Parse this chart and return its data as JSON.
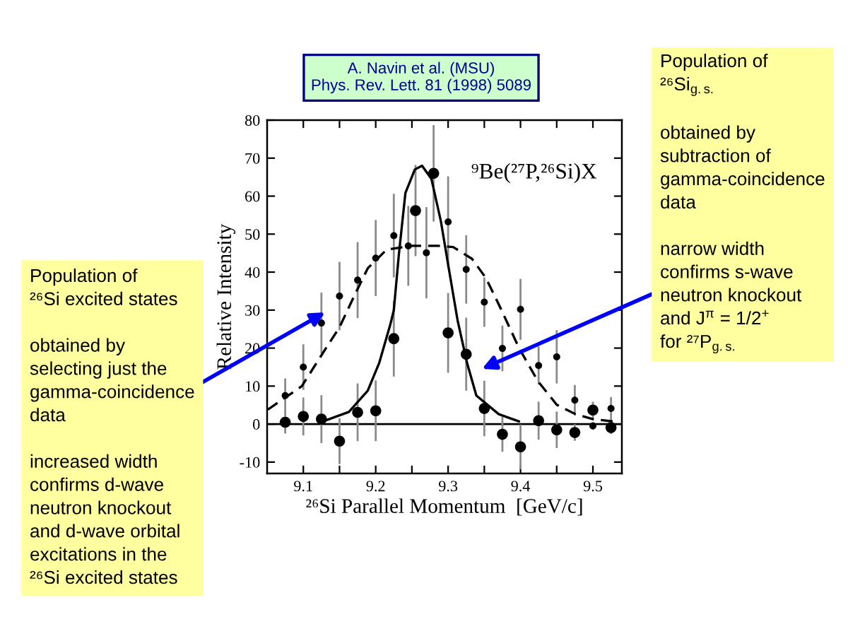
{
  "chart_data": {
    "type": "scatter",
    "annotations": [
      "A. Navin et al. (MSU)\nPhys. Rev. Lett. 81 (1998) 5089",
      "⁹Be(²⁷P,²⁶Si)X",
      "Population of\n²⁶Si excited states\n\nobtained by\nselecting just the\ngamma-coincidence\ndata\n\nincreased width\nconfirms d-wave\nneutron knockout\nand d-wave orbital\nexcitations in the\n²⁶Si excited states",
      "Population of\n²⁶Si$_{g.s.}$\n\nobtained by\nsubtraction of\ngamma-coincidence\ndata\n\nnarrow width\nconfirms s-wave\nneutron knockout\nand J$^{π}$ = 1/2$^{+}$\nfor ²⁷P$_{g.s.}$"
    ],
    "xlabel": "²⁶Si Parallel Momentum  [GeV/c]",
    "ylabel": "Relative Intensity",
    "xlim": [
      9.05,
      9.54
    ],
    "ylim": [
      -13,
      80
    ],
    "xticks": [
      9.1,
      {
        "value": 9.15,
        "label": null
      },
      9.2,
      {
        "value": 9.25,
        "label": null
      },
      9.3,
      {
        "value": 9.35,
        "label": null
      },
      9.4,
      {
        "value": 9.45,
        "label": null
      },
      9.5
    ],
    "yticks": [
      -10,
      0,
      10,
      20,
      30,
      40,
      50,
      60,
      70,
      80
    ],
    "ref_lines": [
      {
        "axis": "y",
        "value": 0,
        "color": "#000000"
      }
    ],
    "series": [
      {
        "marker": "circle",
        "color": "#000000",
        "x": [
          9.075,
          9.1,
          9.125,
          9.15,
          9.175,
          9.2,
          9.225,
          9.245,
          9.27,
          9.3,
          9.325,
          9.35,
          9.375,
          9.4,
          9.425,
          9.45,
          9.475,
          9.5,
          9.525
        ],
        "values": [
          7.5,
          15,
          26.6,
          33.7,
          37.9,
          43.7,
          49.6,
          46.9,
          45.1,
          53.2,
          40.7,
          32.1,
          19.9,
          30.2,
          15.4,
          17.7,
          6.3,
          -0.5,
          4.1
        ],
        "errors": [
          4.5,
          6,
          8,
          9,
          10,
          10,
          11,
          10.5,
          12,
          12,
          9,
          6.5,
          6,
          8,
          5,
          7,
          4,
          1,
          3
        ]
      },
      {
        "marker": "circle",
        "color": "#000000",
        "x": [
          9.075,
          9.1,
          9.125,
          9.15,
          9.175,
          9.2,
          9.225,
          9.255,
          9.28,
          9.3,
          9.325,
          9.35,
          9.375,
          9.4,
          9.425,
          9.45,
          9.475,
          9.5,
          9.525
        ],
        "values": [
          0.5,
          2,
          1.3,
          -4.5,
          3.1,
          3.5,
          22.5,
          56.2,
          66,
          24,
          18.4,
          4.1,
          -2.7,
          -6,
          0.9,
          -1.5,
          -2.2,
          3.7,
          -0.9
        ],
        "errors": [
          3,
          5,
          6.3,
          6,
          7.6,
          8,
          10,
          12,
          12.7,
          10.5,
          9.6,
          7.3,
          4.6,
          5.9,
          5,
          4.8,
          2.2,
          2.2,
          1.7
        ]
      },
      {
        "type": "line",
        "marker": "none",
        "line_style": "solid",
        "color": "#000000",
        "x": [
          9.127,
          9.163,
          9.189,
          9.205,
          9.22,
          9.225,
          9.232,
          9.241,
          9.254,
          9.264,
          9.277,
          9.29,
          9.3,
          9.313,
          9.326,
          9.339,
          9.37,
          9.398
        ],
        "values": [
          0.7,
          3.2,
          8.8,
          16.2,
          26.1,
          30,
          44.7,
          60.8,
          67,
          68,
          64.5,
          53.4,
          42,
          27.4,
          16.2,
          7.5,
          2.6,
          0.7
        ]
      },
      {
        "type": "line",
        "marker": "none",
        "line_style": "dashed",
        "color": "#000000",
        "x": [
          9.051,
          9.098,
          9.131,
          9.15,
          9.17,
          9.189,
          9.215,
          9.248,
          9.287,
          9.307,
          9.333,
          9.352,
          9.371,
          9.398,
          9.424,
          9.45,
          9.476,
          9.5,
          9.528
        ],
        "values": [
          3.8,
          10,
          19.9,
          25.5,
          33.6,
          41,
          45.9,
          46.9,
          46.9,
          46.6,
          43.5,
          38.5,
          31.1,
          20,
          11.3,
          5.1,
          2.6,
          1.3,
          0.7
        ]
      }
    ]
  }
}
